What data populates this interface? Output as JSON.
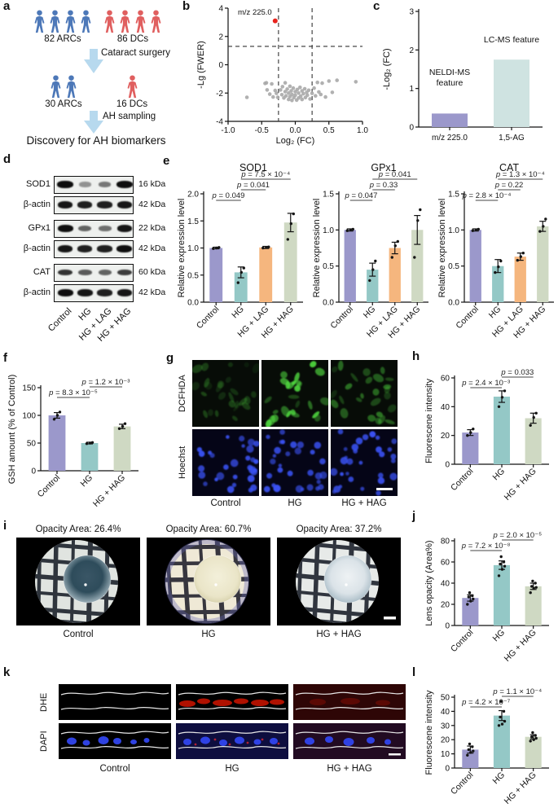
{
  "panels": {
    "a": {
      "label": "a",
      "cohort1": [
        {
          "count": 4,
          "color": "blue",
          "label": "82 ARCs"
        },
        {
          "count": 4,
          "color": "red",
          "label": "86 DCs"
        }
      ],
      "note1": "Cataract surgery",
      "cohort2": [
        {
          "count": 2,
          "color": "blue",
          "label": "30 ARCs"
        },
        {
          "count": 1,
          "color": "red",
          "label": "16 DCs"
        }
      ],
      "note2": "AH sampling",
      "footer": "Discovery for AH biomarkers",
      "person_colors": {
        "blue": "#4d78b8",
        "red": "#e05f5f"
      },
      "arrow_color": "#b7d9ee"
    },
    "b": {
      "label": "b"
    },
    "c": {
      "label": "c"
    },
    "d": {
      "label": "d",
      "rows": [
        {
          "target": "SOD1",
          "kda": "16 kDa",
          "bands": [
            1.05,
            0.3,
            0.45,
            1.3
          ]
        },
        {
          "target": "β-actin",
          "kda": "42 kDa",
          "bands": [
            0.95,
            0.9,
            0.9,
            0.95
          ]
        },
        {
          "target": "GPx1",
          "kda": "22 kDa",
          "bands": [
            1.0,
            0.55,
            0.5,
            0.95
          ]
        },
        {
          "target": "β-actin",
          "kda": "42 kDa",
          "bands": [
            0.95,
            0.9,
            0.9,
            1.0
          ]
        },
        {
          "target": "CAT",
          "kda": "60 kDa",
          "bands": [
            0.8,
            0.6,
            0.55,
            0.75
          ]
        },
        {
          "target": "β-actin",
          "kda": "42 kDa",
          "bands": [
            1.0,
            0.95,
            0.9,
            0.95
          ]
        }
      ],
      "lanes": [
        "Control",
        "HG",
        "HG + LAG",
        "HG + HAG"
      ]
    },
    "e": {
      "label": "e"
    },
    "f": {
      "label": "f"
    },
    "g": {
      "label": "g",
      "row_labels": [
        "DCFHDA",
        "Hoechst"
      ],
      "col_labels": [
        "Control",
        "HG",
        "HG + HAG"
      ],
      "green_levels": [
        0.3,
        1.0,
        0.55
      ],
      "green_color": "#4ed43e",
      "blue_color": "#3a52f5"
    },
    "h": {
      "label": "h"
    },
    "i": {
      "label": "i",
      "titles": [
        "Opacity Area: 26.4%",
        "Opacity Area: 60.7%",
        "Opacity Area: 37.2%"
      ],
      "col_labels": [
        "Control",
        "HG",
        "HG + HAG"
      ],
      "lens_styles": [
        {
          "dish": "#e0e4e0",
          "grid": "#1c222c",
          "rot": 3,
          "stops": [
            [
              "0%",
              "#3a5666"
            ],
            [
              "55%",
              "#2e4c5b"
            ],
            [
              "100%",
              "#b3c5cd"
            ]
          ]
        },
        {
          "dish": "#efe9d6",
          "grid": "#23232e",
          "rot": -2,
          "tint": "#6565b5",
          "stops": [
            [
              "0%",
              "#f3f0da"
            ],
            [
              "70%",
              "#eae5c8"
            ],
            [
              "100%",
              "#d3cda6"
            ]
          ]
        },
        {
          "dish": "#e7eae8",
          "grid": "#1c222c",
          "rot": 4,
          "bar": true,
          "stops": [
            [
              "0%",
              "#eef2f4"
            ],
            [
              "60%",
              "#dbe3e8"
            ],
            [
              "100%",
              "#9fb4bf"
            ]
          ]
        }
      ]
    },
    "j": {
      "label": "j"
    },
    "k": {
      "label": "k",
      "row_labels": [
        "DHE",
        "DAPI"
      ],
      "col_labels": [
        "Control",
        "HG",
        "HG + HAG"
      ],
      "dhe_color": "#c41300",
      "dapi_color": "#3246ee"
    },
    "l": {
      "label": "l"
    }
  },
  "chart_data": [
    {
      "id": "volcano",
      "type": "scatter",
      "xlabel": "Log₂ (FC)",
      "ylabel": "-Lg (FWER)",
      "xlim": [
        -1,
        1
      ],
      "ylim": [
        -4,
        4
      ],
      "xticks": [
        "-1.0",
        "-0.5",
        "0.0",
        "0.5",
        "1.0"
      ],
      "yticks": [
        "-4",
        "-2",
        "0",
        "2",
        "4"
      ],
      "threshold_vlines": [
        -0.25,
        0.25
      ],
      "threshold_hline": 1.3,
      "point_color": "#a9a9a9",
      "highlight_point": {
        "x": -0.3,
        "y": 3.1,
        "color": "#e8231d",
        "label": "m/z 225.0"
      },
      "points": [
        [
          -0.72,
          -2.3
        ],
        [
          -0.45,
          -1.32
        ],
        [
          -0.43,
          -1.28
        ],
        [
          -0.42,
          -1.78
        ],
        [
          -0.38,
          -2.08
        ],
        [
          -0.35,
          -1.35
        ],
        [
          -0.33,
          -2.28
        ],
        [
          -0.3,
          -1.82
        ],
        [
          -0.28,
          -2.02
        ],
        [
          -0.26,
          -2.3
        ],
        [
          -0.22,
          -1.78
        ],
        [
          -0.2,
          -2.12
        ],
        [
          -0.19,
          -1.55
        ],
        [
          -0.17,
          -2.35
        ],
        [
          -0.15,
          -1.28
        ],
        [
          -0.15,
          -1.9
        ],
        [
          -0.14,
          -2.2
        ],
        [
          -0.12,
          -1.72
        ],
        [
          -0.1,
          -2.0
        ],
        [
          -0.1,
          -2.45
        ],
        [
          -0.08,
          -1.52
        ],
        [
          -0.08,
          -2.25
        ],
        [
          -0.06,
          -1.85
        ],
        [
          -0.05,
          -2.1
        ],
        [
          -0.05,
          -2.52
        ],
        [
          -0.03,
          -1.65
        ],
        [
          -0.02,
          -2.32
        ],
        [
          0.0,
          -1.9
        ],
        [
          0.0,
          -2.15
        ],
        [
          0.02,
          -2.5
        ],
        [
          0.03,
          -1.75
        ],
        [
          0.05,
          -2.0
        ],
        [
          0.05,
          -2.35
        ],
        [
          0.07,
          -1.6
        ],
        [
          0.08,
          -2.22
        ],
        [
          0.1,
          -1.85
        ],
        [
          0.1,
          -2.45
        ],
        [
          0.12,
          -2.05
        ],
        [
          0.14,
          -1.7
        ],
        [
          0.15,
          -2.32
        ],
        [
          0.17,
          -1.95
        ],
        [
          0.18,
          -2.15
        ],
        [
          0.2,
          -1.8
        ],
        [
          0.22,
          -2.42
        ],
        [
          0.25,
          -2.02
        ],
        [
          0.28,
          -1.65
        ],
        [
          0.3,
          -2.2
        ],
        [
          0.33,
          -1.25
        ],
        [
          0.35,
          -1.92
        ],
        [
          0.38,
          -2.1
        ],
        [
          0.4,
          -1.3
        ],
        [
          0.45,
          -2.28
        ],
        [
          0.5,
          -1.15
        ],
        [
          0.55,
          -1.95
        ],
        [
          0.62,
          -1.1
        ],
        [
          0.9,
          -1.2
        ]
      ]
    },
    {
      "id": "feature_fc",
      "type": "bar",
      "ylabel": "-Log₂ (FC)",
      "ylim": [
        0,
        3
      ],
      "yticks": [
        "0",
        "1",
        "2",
        "3"
      ],
      "categories": [
        "m/z 225.0",
        "1,5-AG"
      ],
      "values": [
        0.35,
        1.75
      ],
      "colors": [
        "#9b98cb",
        "#cfe3e1"
      ],
      "rotate": false,
      "annotations": [
        {
          "text": "NELDI-MS\nfeature",
          "bar": 0,
          "y": 1.35
        },
        {
          "text": "LC-MS feature",
          "bar": 1,
          "y": 2.2
        }
      ]
    },
    {
      "id": "sod1",
      "type": "bar",
      "title": "SOD1",
      "ylabel": "Relative expression level",
      "ylim": [
        0,
        2.0
      ],
      "yticks": [
        "0.0",
        "0.5",
        "1.0",
        "1.5",
        "2.0"
      ],
      "categories": [
        "Control",
        "HG",
        "HG + LAG",
        "HG + HAG"
      ],
      "values": [
        1.0,
        0.55,
        1.01,
        1.47
      ],
      "errors": [
        0.015,
        0.1,
        0.02,
        0.17
      ],
      "dots": [
        [
          0.99,
          1.0,
          1.01
        ],
        [
          0.36,
          0.55,
          0.63
        ],
        [
          1.0,
          1.01,
          1.02
        ],
        [
          1.16,
          1.45,
          1.63
        ]
      ],
      "colors": [
        "#9b98cb",
        "#94c8c6",
        "#f5b67e",
        "#cfd9c3"
      ],
      "pvals": [
        {
          "from": 0,
          "to": 1,
          "level": 0,
          "label": "p = 0.049"
        },
        {
          "from": 1,
          "to": 2,
          "level": 1,
          "label": "p = 0.041"
        },
        {
          "from": 1,
          "to": 3,
          "level": 2,
          "label": "p = 7.5 × 10⁻⁴"
        }
      ]
    },
    {
      "id": "gpx1",
      "type": "bar",
      "title": "GPx1",
      "ylabel": "Relative expression level",
      "ylim": [
        0,
        1.5
      ],
      "yticks": [
        "0.0",
        "0.5",
        "1.0",
        "1.5"
      ],
      "categories": [
        "Control",
        "HG",
        "HG + LAG",
        "HG + HAG"
      ],
      "values": [
        1.0,
        0.45,
        0.75,
        1.0
      ],
      "errors": [
        0.015,
        0.09,
        0.08,
        0.2
      ],
      "dots": [
        [
          0.99,
          1.0,
          1.01
        ],
        [
          0.3,
          0.45,
          0.57
        ],
        [
          0.62,
          0.78,
          0.84
        ],
        [
          0.62,
          1.13,
          1.28
        ]
      ],
      "colors": [
        "#9b98cb",
        "#94c8c6",
        "#f5b67e",
        "#cfd9c3"
      ],
      "pvals": [
        {
          "from": 0,
          "to": 1,
          "level": 0,
          "label": "p = 0.047"
        },
        {
          "from": 1,
          "to": 2,
          "level": 1,
          "label": "p = 0.33"
        },
        {
          "from": 1,
          "to": 3,
          "level": 2,
          "label": "p = 0.041"
        }
      ]
    },
    {
      "id": "cat",
      "type": "bar",
      "title": "CAT",
      "ylabel": "Relative expression level",
      "ylim": [
        0,
        1.5
      ],
      "yticks": [
        "0.0",
        "0.5",
        "1.0",
        "1.5"
      ],
      "categories": [
        "Control",
        "HG",
        "HG + LAG",
        "HG + HAG"
      ],
      "values": [
        1.0,
        0.5,
        0.63,
        1.05
      ],
      "errors": [
        0.015,
        0.09,
        0.05,
        0.07
      ],
      "dots": [
        [
          0.99,
          1.0,
          1.01
        ],
        [
          0.41,
          0.49,
          0.57
        ],
        [
          0.58,
          0.63,
          0.68
        ],
        [
          0.98,
          1.05,
          1.15
        ]
      ],
      "colors": [
        "#9b98cb",
        "#94c8c6",
        "#f5b67e",
        "#cfd9c3"
      ],
      "pvals": [
        {
          "from": 0,
          "to": 1,
          "level": 0,
          "label": "p = 2.8 × 10⁻⁴"
        },
        {
          "from": 1,
          "to": 2,
          "level": 1,
          "label": "p = 0.22"
        },
        {
          "from": 1,
          "to": 3,
          "level": 2,
          "label": "p = 1.3 × 10⁻⁴"
        }
      ]
    },
    {
      "id": "gsh",
      "type": "bar",
      "ylabel": "GSH amount (% of Control)",
      "ylim": [
        0,
        150
      ],
      "yticks": [
        "0",
        "50",
        "100",
        "150"
      ],
      "categories": [
        "Control",
        "HG",
        "HG + HAG"
      ],
      "values": [
        100,
        50,
        80
      ],
      "errors": [
        5,
        1.5,
        4
      ],
      "dots": [
        [
          93,
          100,
          106
        ],
        [
          49,
          50,
          51
        ],
        [
          76,
          80,
          85
        ]
      ],
      "colors": [
        "#9b98cb",
        "#94c8c6",
        "#cfd9c3"
      ],
      "pvals": [
        {
          "from": 0,
          "to": 1,
          "level": 0,
          "label": "p = 8.3 × 10⁻⁵"
        },
        {
          "from": 1,
          "to": 2,
          "level": 1,
          "label": "p = 1.2 × 10⁻³"
        }
      ]
    },
    {
      "id": "ros",
      "type": "bar",
      "ylabel": "Fluorescene intensity",
      "ylim": [
        0,
        60
      ],
      "yticks": [
        "0",
        "20",
        "40",
        "60"
      ],
      "categories": [
        "Control",
        "HG",
        "HG + HAG"
      ],
      "values": [
        22,
        47,
        32
      ],
      "errors": [
        2,
        4,
        3.5
      ],
      "dots": [
        [
          20,
          22,
          24.5
        ],
        [
          40,
          46.5,
          51
        ],
        [
          27,
          32.5,
          35.5
        ]
      ],
      "colors": [
        "#9b98cb",
        "#94c8c6",
        "#cfd9c3"
      ],
      "pvals": [
        {
          "from": 0,
          "to": 1,
          "level": 0,
          "label": "p = 2.4 × 10⁻³"
        },
        {
          "from": 1,
          "to": 2,
          "level": 1,
          "label": "p = 0.033"
        }
      ]
    },
    {
      "id": "lens_opacity",
      "type": "bar",
      "ylabel": "Lens opacity (Area%)",
      "ylim": [
        0,
        80
      ],
      "yticks": [
        "0",
        "20",
        "40",
        "60",
        "80"
      ],
      "categories": [
        "Control",
        "HG",
        "HG + HAG"
      ],
      "values": [
        26,
        57,
        37
      ],
      "errors": [
        3,
        4,
        3
      ],
      "dots": [
        [
          20,
          23,
          25,
          27,
          28,
          31
        ],
        [
          47,
          53,
          56,
          58,
          60,
          65
        ],
        [
          31,
          35,
          36,
          37,
          40,
          42
        ]
      ],
      "colors": [
        "#9b98cb",
        "#94c8c6",
        "#cfd9c3"
      ],
      "pvals": [
        {
          "from": 0,
          "to": 1,
          "level": 0,
          "label": "p = 7.2 × 10⁻⁸"
        },
        {
          "from": 1,
          "to": 2,
          "level": 1,
          "label": "p = 2.0 × 10⁻⁵"
        }
      ]
    },
    {
      "id": "dhe_intensity",
      "type": "bar",
      "ylabel": "Fluorescene intensity",
      "ylim": [
        0,
        50
      ],
      "yticks": [
        "0",
        "10",
        "20",
        "30",
        "40",
        "50"
      ],
      "categories": [
        "Control",
        "HG",
        "HG + HAG"
      ],
      "values": [
        13,
        37,
        22
      ],
      "errors": [
        2.5,
        3.5,
        1.5
      ],
      "dots": [
        [
          9,
          11,
          12,
          13,
          15,
          17
        ],
        [
          30,
          31,
          33,
          36,
          40,
          47
        ],
        [
          19,
          20,
          21,
          22,
          23,
          25
        ]
      ],
      "colors": [
        "#9b98cb",
        "#94c8c6",
        "#cfd9c3"
      ],
      "pvals": [
        {
          "from": 0,
          "to": 1,
          "level": 0,
          "label": "p = 4.2 × 10⁻⁷"
        },
        {
          "from": 1,
          "to": 2,
          "level": 1,
          "label": "p = 1.1 × 10⁻⁴"
        }
      ]
    }
  ]
}
